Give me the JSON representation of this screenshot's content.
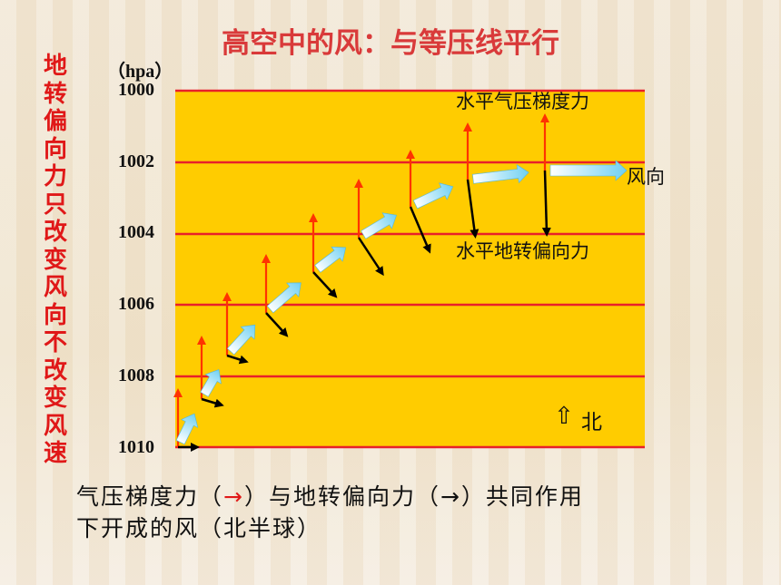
{
  "title": "高空中的风：与等压线平行",
  "side_text": [
    "地",
    "转",
    "偏",
    "向",
    "力",
    "只",
    "改",
    "变",
    "风",
    "向",
    "不",
    "改",
    "变",
    "风",
    "速"
  ],
  "unit": "（hpa）",
  "pressure_ticks": [
    "1000",
    "1002",
    "1004",
    "1006",
    "1008",
    "1010"
  ],
  "labels": {
    "pgf": "水平气压梯度力",
    "wind": "风向",
    "coriolis": "水平地转偏向力",
    "north_arrow": "⇧",
    "north": "北"
  },
  "caption": {
    "line1_a": "气压梯度力（",
    "line1_red": "→",
    "line1_b": "）与地转偏向力（→）共同作用",
    "line2": "下开成的风（北半球）"
  },
  "colors": {
    "plot_bg": "#ffcc00",
    "isobar": "#e8202a",
    "pgf_arrow": "#ff3300",
    "wind_arrow": "#7fd8f5",
    "coriolis_arrow": "#000000"
  }
}
